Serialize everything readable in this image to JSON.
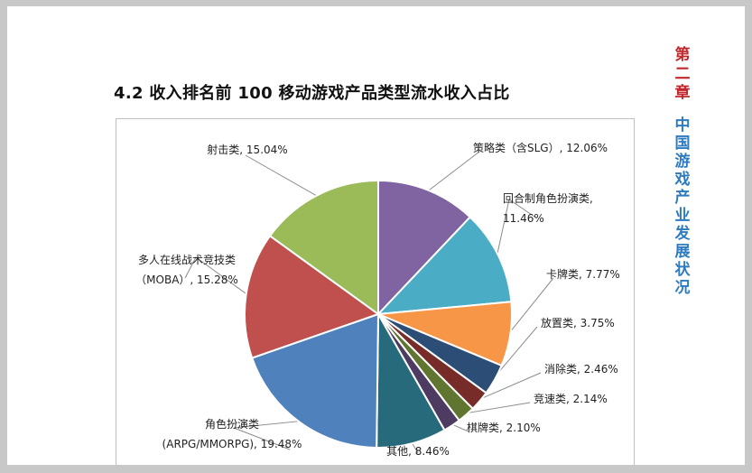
{
  "page": {
    "title": "4.2  收入排名前 100 移动游戏产品类型流水收入占比",
    "side_chapter": "第二章",
    "side_subtitle": "中国游戏产业发展状况"
  },
  "chart_data": {
    "type": "pie",
    "unit": "%",
    "start": "12 o'clock, clockwise",
    "slices": [
      {
        "label": "策略类（含SLG）",
        "value": 12.06,
        "display": "策略类（含SLG）, 12.06%",
        "color": "#8064a2"
      },
      {
        "label": "回合制角色扮演类",
        "value": 11.46,
        "display": "回合制角色扮演类, 11.46%",
        "color": "#4bacc6"
      },
      {
        "label": "卡牌类",
        "value": 7.77,
        "display": "卡牌类, 7.77%",
        "color": "#f79646"
      },
      {
        "label": "放置类",
        "value": 3.75,
        "display": "放置类, 3.75%",
        "color": "#2c4d75"
      },
      {
        "label": "消除类",
        "value": 2.46,
        "display": "消除类, 2.46%",
        "color": "#772c2a"
      },
      {
        "label": "竞速类",
        "value": 2.14,
        "display": "竞速类, 2.14%",
        "color": "#5f7530"
      },
      {
        "label": "棋牌类",
        "value": 2.1,
        "display": "棋牌类, 2.10%",
        "color": "#4d3b62"
      },
      {
        "label": "其他",
        "value": 8.46,
        "display": "其他, 8.46%",
        "color": "#276a7c"
      },
      {
        "label": "角色扮演类(ARPG/MMORPG)",
        "value": 19.48,
        "display": "角色扮演类(ARPG/MMORPG), 19.48%",
        "color": "#4f81bd"
      },
      {
        "label": "多人在线战术竞技类(MOBA)",
        "value": 15.28,
        "display": "多人在线战术竞技类(MOBA), 15.28%",
        "color": "#c0504d"
      },
      {
        "label": "射击类",
        "value": 15.04,
        "display": "射击类, 15.04%",
        "color": "#9bbb59"
      }
    ]
  }
}
